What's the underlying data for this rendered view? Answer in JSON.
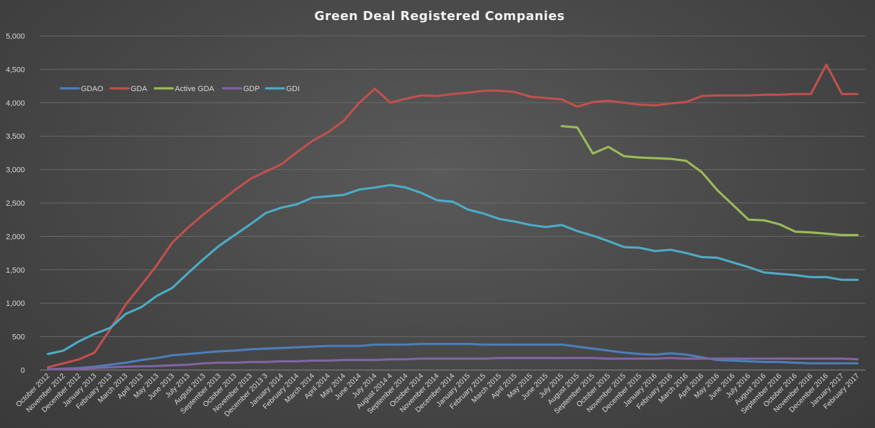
{
  "chart_data": {
    "type": "line",
    "title": "Green Deal Registered Companies",
    "xlabel": "",
    "ylabel": "",
    "ylim": [
      0,
      5000
    ],
    "y_ticks": [
      "0",
      "500",
      "1,000",
      "1,500",
      "2,000",
      "2,500",
      "3,000",
      "3,500",
      "4,000",
      "4,500",
      "5,000"
    ],
    "grid": true,
    "legend_position": "top-left",
    "categories": [
      "October 2012",
      "November 2012",
      "December 2012",
      "January 2013",
      "February 2013",
      "March 2013",
      "April 2013",
      "May 2013",
      "June 2013",
      "July 2013",
      "August 2013",
      "September 2013",
      "October 2013",
      "November 2013",
      "December 2013 3",
      "January 2014",
      "February 2014",
      "March 2014",
      "April 2014",
      "May 2014",
      "June 2014",
      "July 2014",
      "August 2014 4",
      "September 2014",
      "October 2014",
      "November 2014",
      "December 2014",
      "January 2015",
      "February 2015",
      "March 2015",
      "April 2015",
      "May 2015",
      "June 2015",
      "July 2015",
      "August 2015",
      "September 2015",
      "October 2015",
      "November 2015",
      "December 2015",
      "January 2016",
      "February 2016",
      "March 2016",
      "April 2016",
      "May 2016",
      "June 2016",
      "July 2016",
      "August 2016",
      "September 2016",
      "October 2016",
      "November 2016",
      "December 2016",
      "January 2017",
      "February 2017"
    ],
    "series": [
      {
        "name": "GDAO",
        "color": "#4a7ebb",
        "values": [
          10,
          20,
          30,
          50,
          80,
          110,
          150,
          180,
          220,
          240,
          260,
          280,
          290,
          310,
          320,
          330,
          340,
          350,
          360,
          360,
          360,
          380,
          380,
          380,
          390,
          390,
          390,
          390,
          380,
          380,
          380,
          380,
          380,
          380,
          350,
          320,
          290,
          260,
          240,
          230,
          250,
          230,
          190,
          150,
          140,
          130,
          120,
          120,
          110,
          100,
          100,
          100,
          100
        ]
      },
      {
        "name": "GDA",
        "color": "#c0504d",
        "values": [
          40,
          100,
          160,
          260,
          610,
          980,
          1270,
          1570,
          1910,
          2130,
          2330,
          2510,
          2690,
          2860,
          2970,
          3080,
          3260,
          3430,
          3560,
          3730,
          4000,
          4210,
          4000,
          4060,
          4110,
          4100,
          4130,
          4150,
          4180,
          4180,
          4160,
          4090,
          4070,
          4050,
          3940,
          4010,
          4030,
          4000,
          3970,
          3960,
          3990,
          4010,
          4100,
          4110,
          4110,
          4110,
          4120,
          4120,
          4130,
          4130,
          4570,
          4130,
          4130
        ]
      },
      {
        "name": "Active GDA",
        "color": "#9bbb59",
        "values": [
          null,
          null,
          null,
          null,
          null,
          null,
          null,
          null,
          null,
          null,
          null,
          null,
          null,
          null,
          null,
          null,
          null,
          null,
          null,
          null,
          null,
          null,
          null,
          null,
          null,
          null,
          null,
          null,
          null,
          null,
          null,
          null,
          null,
          3650,
          3630,
          3240,
          3340,
          3200,
          3180,
          3170,
          3160,
          3130,
          2960,
          2690,
          2470,
          2250,
          2240,
          2180,
          2070,
          2060,
          2040,
          2020,
          2020
        ]
      },
      {
        "name": "GDP",
        "color": "#8064a2",
        "values": [
          10,
          15,
          20,
          30,
          40,
          50,
          55,
          60,
          70,
          80,
          100,
          110,
          110,
          120,
          120,
          130,
          130,
          140,
          140,
          150,
          150,
          150,
          160,
          160,
          170,
          170,
          170,
          170,
          170,
          180,
          180,
          180,
          180,
          180,
          180,
          180,
          170,
          170,
          170,
          170,
          180,
          170,
          170,
          170,
          170,
          170,
          170,
          170,
          170,
          170,
          170,
          170,
          160
        ]
      },
      {
        "name": "GDI",
        "color": "#4bacc6",
        "values": [
          240,
          290,
          430,
          540,
          630,
          840,
          940,
          1110,
          1230,
          1450,
          1660,
          1860,
          2020,
          2180,
          2350,
          2430,
          2480,
          2580,
          2600,
          2620,
          2700,
          2730,
          2770,
          2730,
          2650,
          2540,
          2520,
          2400,
          2340,
          2260,
          2220,
          2170,
          2140,
          2170,
          2080,
          2010,
          1930,
          1840,
          1830,
          1780,
          1800,
          1750,
          1690,
          1680,
          1610,
          1540,
          1460,
          1440,
          1420,
          1390,
          1390,
          1350,
          1350
        ]
      }
    ]
  }
}
